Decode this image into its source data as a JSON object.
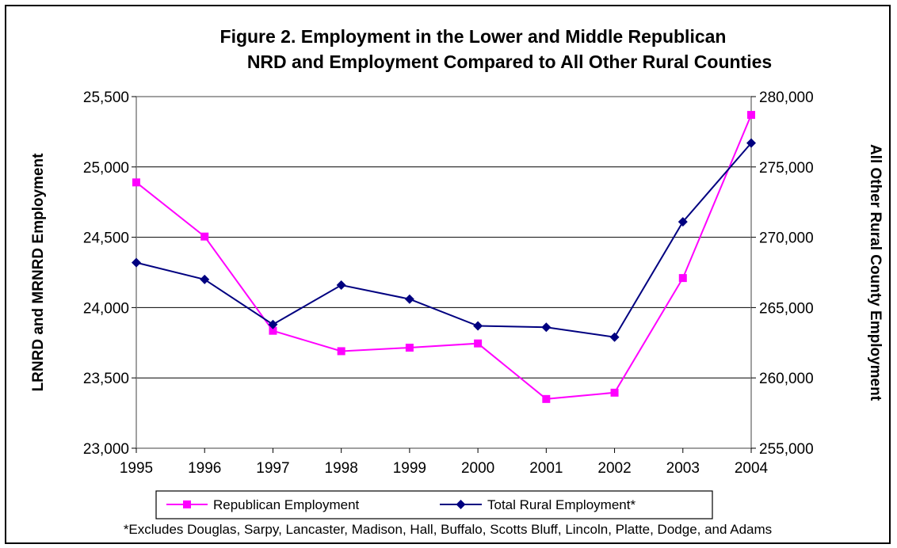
{
  "chart_data": {
    "type": "line",
    "title_line1": "Figure 2. Employment in the Lower and Middle Republican",
    "title_line2": "NRD and Employment Compared to All Other Rural Counties",
    "x": [
      "1995",
      "1996",
      "1997",
      "1998",
      "1999",
      "2000",
      "2001",
      "2002",
      "2003",
      "2004"
    ],
    "y_left": {
      "label": "LRNRD and MRNRD Employment",
      "lim": [
        23000,
        25500
      ],
      "ticks": [
        "23,000",
        "23,500",
        "24,000",
        "24,500",
        "25,000",
        "25,500"
      ]
    },
    "y_right": {
      "label": "All Other Rural County Employment",
      "lim": [
        255000,
        280000
      ],
      "ticks": [
        "255,000",
        "260,000",
        "265,000",
        "270,000",
        "275,000",
        "280,000"
      ]
    },
    "grid": "horizontal",
    "legend_position": "bottom",
    "series": [
      {
        "name": "Republican Employment",
        "axis": "left",
        "color": "#FF00FF",
        "marker": "square",
        "values": [
          24890,
          24505,
          23835,
          23690,
          23715,
          23745,
          23350,
          23395,
          24210,
          25370
        ]
      },
      {
        "name": "Total Rural Employment*",
        "axis": "right",
        "color": "#000080",
        "marker": "diamond",
        "values": [
          268200,
          267000,
          263800,
          266600,
          265600,
          263700,
          263600,
          262900,
          271100,
          276700
        ]
      }
    ],
    "footnote": "*Excludes Douglas, Sarpy, Lancaster, Madison, Hall, Buffalo, Scotts Bluff, Lincoln, Platte, Dodge, and Adams"
  }
}
